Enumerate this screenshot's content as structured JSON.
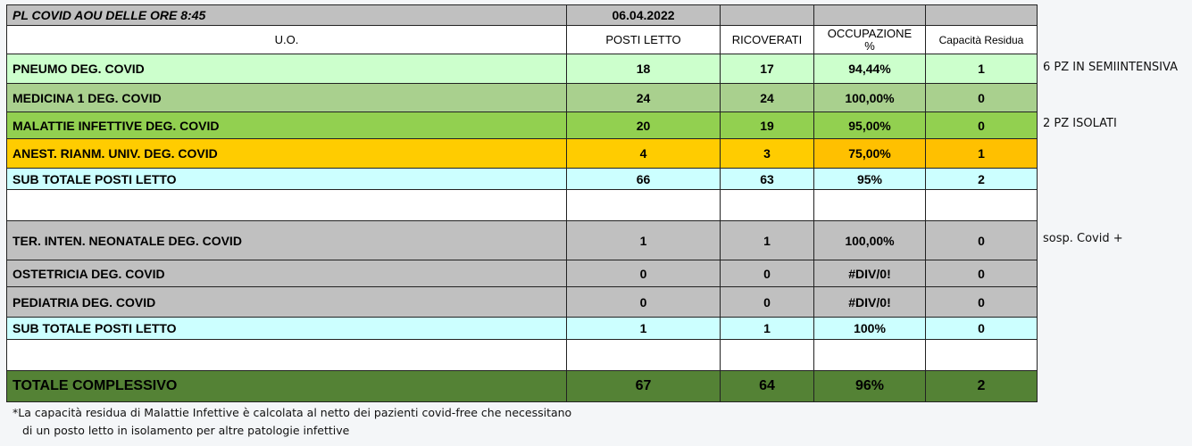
{
  "header": {
    "title": "PL COVID AOU DELLE ORE  8:45",
    "date": "06.04.2022"
  },
  "columns": [
    "U.O.",
    "POSTI LETTO",
    "RICOVERATI",
    "OCCUPAZIONE %",
    "Capacità Residua"
  ],
  "rows": [
    {
      "name": "PNEUMO  DEG. COVID",
      "posti": "18",
      "ricoverati": "17",
      "occupazione": "94,44%",
      "capacita": "1",
      "note": "6  PZ IN SEMIINTENSIVA",
      "color": "#ccffcc"
    },
    {
      "name": "MEDICINA 1 DEG. COVID",
      "posti": "24",
      "ricoverati": "24",
      "occupazione": "100,00%",
      "capacita": "0",
      "note": "",
      "color": "#a9d08e"
    },
    {
      "name": "MALATTIE INFETTIVE  DEG. COVID",
      "posti": "20",
      "ricoverati": "19",
      "occupazione": "95,00%",
      "capacita": "0",
      "note": "2  PZ  ISOLATI",
      "color": "#92d050"
    },
    {
      "name": "ANEST. RIANM. UNIV. DEG. COVID",
      "posti": "4",
      "ricoverati": "3",
      "occupazione": "75,00%",
      "capacita": "1",
      "note": "",
      "color": "#ffcc00"
    },
    {
      "name": "SUB TOTALE POSTI LETTO",
      "posti": "66",
      "ricoverati": "63",
      "occupazione": "95%",
      "capacita": "2",
      "note": "",
      "color": "#ccffff"
    },
    {
      "name": "TER. INTEN. NEONATALE DEG. COVID",
      "posti": "1",
      "ricoverati": "1",
      "occupazione": "100,00%",
      "capacita": "0",
      "note": "sosp. Covid +",
      "color": "#c0c0c0"
    },
    {
      "name": "OSTETRICIA DEG.  COVID",
      "posti": "0",
      "ricoverati": "0",
      "occupazione": "#DIV/0!",
      "capacita": "0",
      "note": "",
      "color": "#c0c0c0"
    },
    {
      "name": "PEDIATRIA DEG.  COVID",
      "posti": "0",
      "ricoverati": "0",
      "occupazione": "#DIV/0!",
      "capacita": "0",
      "note": "",
      "color": "#c0c0c0"
    },
    {
      "name": "SUB TOTALE POSTI LETTO",
      "posti": "1",
      "ricoverati": "1",
      "occupazione": "100%",
      "capacita": "0",
      "note": "",
      "color": "#ccffff"
    },
    {
      "name": "TOTALE  COMPLESSIVO",
      "posti": "67",
      "ricoverati": "64",
      "occupazione": "96%",
      "capacita": "2",
      "note": "",
      "color": "#548235"
    }
  ],
  "footnote": [
    "*La capacità residua di Malattie Infettive è calcolata al netto dei pazienti covid-free che necessitano",
    "di un posto letto in isolamento per altre patologie infettive"
  ]
}
